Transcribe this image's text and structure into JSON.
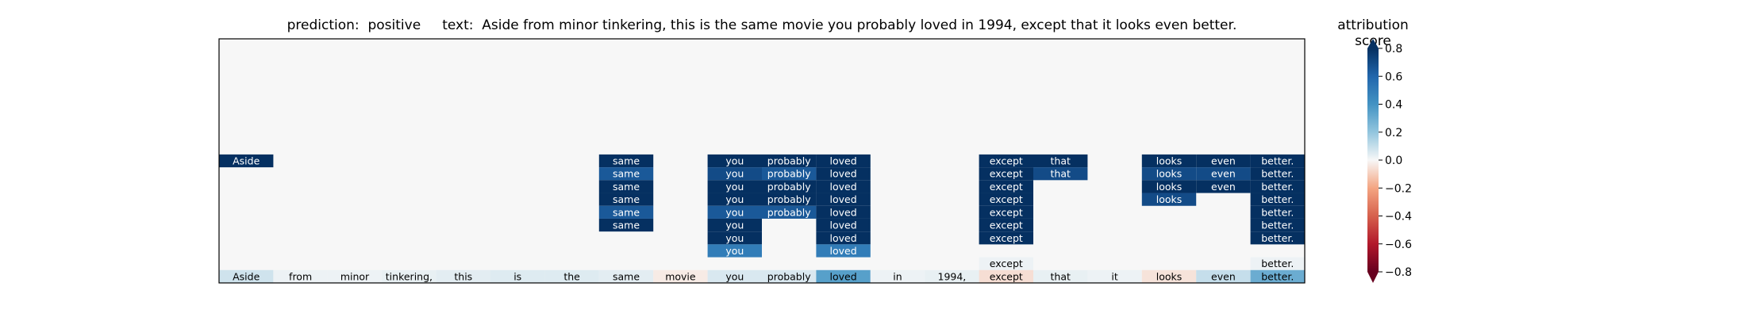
{
  "header": {
    "prediction_label": "prediction:",
    "prediction_value": "positive",
    "text_label": "text:",
    "text_value": "Aside from minor tinkering, this is the same movie you probably loved in 1994, except that it looks even better."
  },
  "colorbar": {
    "title": "attribution score",
    "ticks": [
      "0.8",
      "0.6",
      "0.4",
      "0.2",
      "0.0",
      "−0.2",
      "−0.4",
      "−0.6",
      "−0.8"
    ],
    "tick_values": [
      0.8,
      0.6,
      0.4,
      0.2,
      0.0,
      -0.2,
      -0.4,
      -0.6,
      -0.8
    ],
    "range": [
      -0.8,
      0.8
    ],
    "colormap": "RdBu",
    "extend": "both"
  },
  "chart_data": {
    "type": "heatmap",
    "tokens": [
      "Aside",
      "from",
      "minor",
      "tinkering,",
      "this",
      "is",
      "the",
      "same",
      "movie",
      "you",
      "probably",
      "loved",
      "in",
      "1994,",
      "except",
      "that",
      "it",
      "looks",
      "even",
      "better."
    ],
    "base_row_scores": [
      0.08,
      0.02,
      0.02,
      0.03,
      0.04,
      0.05,
      0.05,
      0.04,
      -0.03,
      0.06,
      0.06,
      0.35,
      0.02,
      0.03,
      -0.06,
      0.03,
      0.02,
      -0.05,
      0.1,
      0.3
    ],
    "rows": [
      {
        "cells": [
          [
            0,
            0.95
          ],
          [
            7,
            0.95
          ],
          [
            9,
            0.95
          ],
          [
            10,
            0.95
          ],
          [
            11,
            0.95
          ],
          [
            14,
            0.95
          ],
          [
            15,
            0.95
          ],
          [
            17,
            0.95
          ],
          [
            18,
            0.95
          ],
          [
            19,
            0.95
          ]
        ]
      },
      {
        "cells": [
          [
            7,
            0.65
          ],
          [
            9,
            0.7
          ],
          [
            10,
            0.65
          ],
          [
            11,
            0.95
          ],
          [
            14,
            0.95
          ],
          [
            15,
            0.7
          ],
          [
            17,
            0.7
          ],
          [
            18,
            0.7
          ],
          [
            19,
            0.95
          ]
        ]
      },
      {
        "cells": [
          [
            7,
            0.95
          ],
          [
            9,
            0.95
          ],
          [
            10,
            0.95
          ],
          [
            11,
            0.95
          ],
          [
            14,
            0.95
          ],
          [
            17,
            0.95
          ],
          [
            18,
            0.95
          ],
          [
            19,
            0.95
          ]
        ]
      },
      {
        "cells": [
          [
            7,
            0.95
          ],
          [
            9,
            0.95
          ],
          [
            10,
            0.95
          ],
          [
            11,
            0.95
          ],
          [
            14,
            0.95
          ],
          [
            17,
            0.7
          ],
          [
            19,
            0.95
          ]
        ]
      },
      {
        "cells": [
          [
            7,
            0.65
          ],
          [
            9,
            0.65
          ],
          [
            10,
            0.65
          ],
          [
            11,
            0.95
          ],
          [
            14,
            0.95
          ],
          [
            19,
            0.95
          ]
        ]
      },
      {
        "cells": [
          [
            7,
            0.95
          ],
          [
            9,
            0.95
          ],
          [
            11,
            0.95
          ],
          [
            14,
            0.95
          ],
          [
            19,
            0.95
          ]
        ]
      },
      {
        "cells": [
          [
            9,
            0.95
          ],
          [
            11,
            0.95
          ],
          [
            14,
            0.95
          ],
          [
            19,
            0.95
          ]
        ]
      },
      {
        "cells": [
          [
            9,
            0.5
          ],
          [
            11,
            0.5
          ]
        ]
      },
      {
        "cells": [
          [
            14,
            0.02
          ],
          [
            19,
            0.02
          ]
        ]
      }
    ],
    "grid": false
  }
}
